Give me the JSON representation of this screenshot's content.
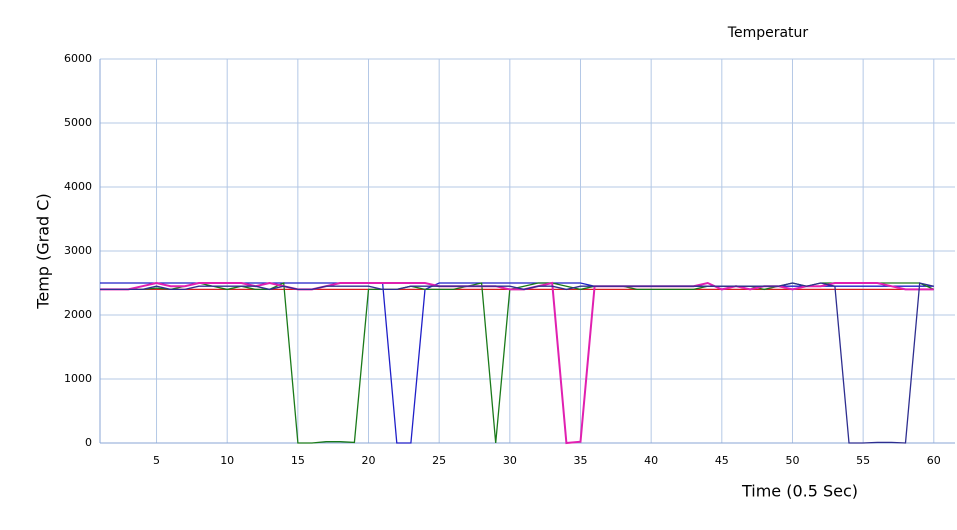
{
  "chart_data": {
    "type": "line",
    "title": "Temperatur",
    "x_label": "Time (0.5 Sec)",
    "y_label": "Temp (Grad C)",
    "x": [
      1,
      2,
      3,
      4,
      5,
      6,
      7,
      8,
      9,
      10,
      11,
      12,
      13,
      14,
      15,
      16,
      17,
      18,
      19,
      20,
      21,
      22,
      23,
      24,
      25,
      26,
      27,
      28,
      29,
      30,
      31,
      32,
      33,
      34,
      35,
      36,
      37,
      38,
      39,
      40,
      41,
      42,
      43,
      44,
      45,
      46,
      47,
      48,
      49,
      50,
      51,
      52,
      53,
      54,
      55,
      56,
      57,
      58,
      59,
      60
    ],
    "series": [
      {
        "color": "#1f1fc8",
        "values": [
          2500,
          2500,
          2500,
          2500,
          2500,
          2500,
          2500,
          2500,
          2500,
          2500,
          2500,
          2500,
          2500,
          2500,
          2500,
          2500,
          2500,
          2500,
          2500,
          2500,
          2500,
          0,
          0,
          2400,
          2500,
          2500,
          2500,
          2500,
          2500,
          2500,
          2500,
          2500,
          2500,
          2500,
          2500,
          2450,
          2450,
          2450,
          2450,
          2450,
          2450,
          2450,
          2450,
          2450,
          2450,
          2450,
          2450,
          2450,
          2450,
          2450,
          2450,
          2450,
          2450,
          2450,
          2450,
          2450,
          2450,
          2450,
          2450,
          2450
        ]
      },
      {
        "color": "#d62020",
        "values": [
          2400,
          2400,
          2400,
          2400,
          2400,
          2400,
          2400,
          2400,
          2400,
          2400,
          2400,
          2400,
          2400,
          2400,
          2400,
          2400,
          2400,
          2400,
          2400,
          2400,
          2400,
          2400,
          2400,
          2400,
          2400,
          2400,
          2400,
          2400,
          2400,
          2400,
          2400,
          2400,
          2400,
          2400,
          2400,
          2400,
          2400,
          2400,
          2400,
          2400,
          2400,
          2400,
          2400,
          2400,
          2400,
          2400,
          2400,
          2400,
          2400,
          2400,
          2400,
          2400,
          2400,
          2400,
          2400,
          2400,
          2400,
          2400,
          2400,
          2400
        ]
      },
      {
        "color": "#1a7a1a",
        "values": [
          2400,
          2400,
          2400,
          2400,
          2420,
          2400,
          2450,
          2500,
          2450,
          2400,
          2450,
          2400,
          2400,
          2500,
          0,
          0,
          20,
          20,
          10,
          2400,
          2400,
          2400,
          2450,
          2400,
          2400,
          2400,
          2450,
          2500,
          0,
          2400,
          2450,
          2500,
          2500,
          2450,
          2400,
          2450,
          2450,
          2450,
          2400,
          2400,
          2400,
          2400,
          2400,
          2450,
          2450,
          2450,
          2450,
          2400,
          2450,
          2500,
          2450,
          2500,
          2500,
          2500,
          2500,
          2500,
          2500,
          2500,
          2500,
          2400
        ]
      },
      {
        "color": "#e020b0",
        "values": [
          2400,
          2400,
          2400,
          2450,
          2500,
          2450,
          2450,
          2500,
          2500,
          2500,
          2500,
          2450,
          2500,
          2450,
          2400,
          2400,
          2450,
          2500,
          2500,
          2500,
          2500,
          2500,
          2500,
          2500,
          2450,
          2450,
          2450,
          2450,
          2450,
          2400,
          2400,
          2450,
          2500,
          0,
          20,
          2450,
          2450,
          2450,
          2450,
          2450,
          2450,
          2450,
          2450,
          2500,
          2400,
          2450,
          2400,
          2450,
          2450,
          2400,
          2450,
          2450,
          2500,
          2500,
          2500,
          2500,
          2450,
          2400,
          2400,
          2400
        ]
      },
      {
        "color": "#2e2e90",
        "values": [
          2400,
          2400,
          2400,
          2400,
          2450,
          2400,
          2400,
          2450,
          2450,
          2450,
          2450,
          2450,
          2400,
          2450,
          2400,
          2400,
          2450,
          2450,
          2450,
          2450,
          2400,
          2400,
          2450,
          2450,
          2450,
          2450,
          2450,
          2450,
          2450,
          2450,
          2400,
          2450,
          2450,
          2400,
          2450,
          2450,
          2450,
          2450,
          2450,
          2450,
          2450,
          2450,
          2450,
          2450,
          2450,
          2450,
          2450,
          2450,
          2450,
          2500,
          2450,
          2500,
          2450,
          0,
          0,
          10,
          10,
          0,
          2500,
          2450
        ]
      }
    ],
    "xlim": [
      1,
      61.5
    ],
    "ylim": [
      0,
      6000
    ],
    "xticks": [
      5,
      10,
      15,
      20,
      25,
      30,
      35,
      40,
      45,
      50,
      55,
      60
    ],
    "yticks": [
      0,
      1000,
      2000,
      3000,
      4000,
      5000,
      6000
    ],
    "grid": true
  }
}
